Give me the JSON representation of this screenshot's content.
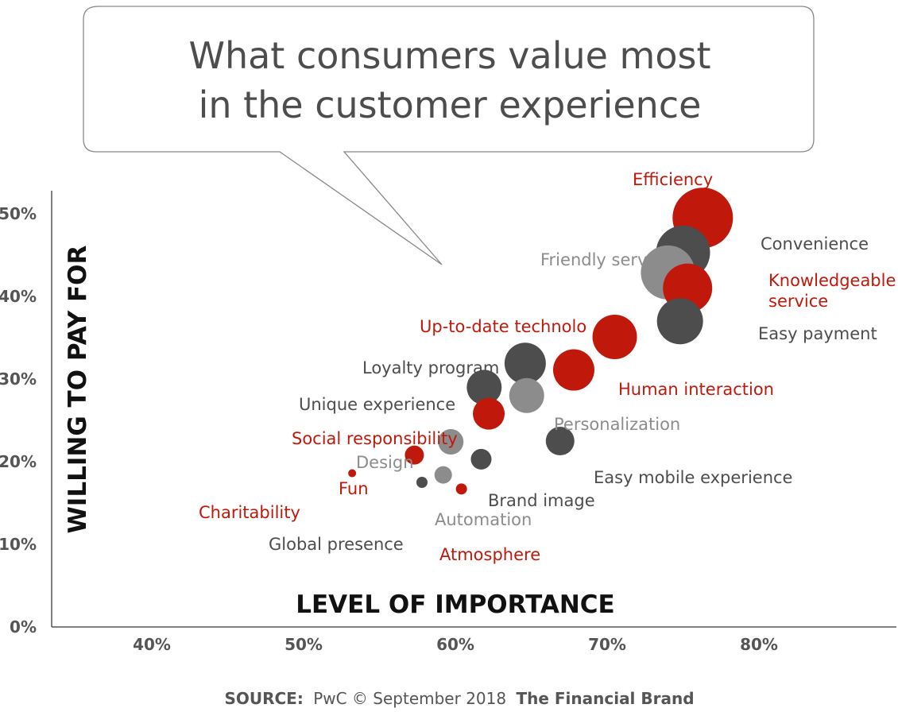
{
  "chart_data": {
    "type": "scatter",
    "title_lines": [
      "What consumers value most",
      "in the customer experience"
    ],
    "xlabel": "LEVEL OF IMPORTANCE",
    "ylabel": "WILLING TO PAY FOR",
    "x_ticks": [
      "40%",
      "50%",
      "60%",
      "70%",
      "80%"
    ],
    "y_ticks": [
      "0%",
      "10%",
      "20%",
      "30%",
      "40%",
      "50%"
    ],
    "xlim": [
      34,
      90
    ],
    "ylim": [
      0,
      52
    ],
    "grid": false,
    "colors": {
      "red": "#c0190c",
      "dark": "#4d4d4d",
      "grey": "#8c8c8c"
    },
    "points": [
      {
        "label": "Efficiency",
        "x": 76.3,
        "y": 49.5,
        "size": 38,
        "color": "red"
      },
      {
        "label": "Convenience",
        "x": 75.0,
        "y": 45.3,
        "size": 34,
        "color": "dark"
      },
      {
        "label": "Friendly service",
        "x": 74.0,
        "y": 42.9,
        "size": 34,
        "color": "grey"
      },
      {
        "label": "Knowledgeable service",
        "x": 75.3,
        "y": 41.0,
        "size": 31,
        "color": "red"
      },
      {
        "label": "Easy payment",
        "x": 74.8,
        "y": 37.0,
        "size": 29,
        "color": "dark"
      },
      {
        "label": "Up-to-date technology",
        "x": 70.5,
        "y": 35.1,
        "size": 28,
        "color": "red"
      },
      {
        "label": "Loyalty programs",
        "x": 64.6,
        "y": 31.9,
        "size": 26,
        "color": "dark"
      },
      {
        "label": "Human interaction",
        "x": 67.8,
        "y": 31.1,
        "size": 26,
        "color": "red"
      },
      {
        "label": "Unique experience",
        "x": 61.9,
        "y": 29.0,
        "size": 22,
        "color": "dark"
      },
      {
        "label": "Personalization",
        "x": 64.7,
        "y": 28.0,
        "size": 22,
        "color": "grey"
      },
      {
        "label": "Social responsibility",
        "x": 62.2,
        "y": 25.8,
        "size": 20,
        "color": "red"
      },
      {
        "label": "Easy mobile experience",
        "x": 66.9,
        "y": 22.5,
        "size": 18,
        "color": "dark"
      },
      {
        "label": "Design",
        "x": 59.7,
        "y": 22.4,
        "size": 16,
        "color": "grey"
      },
      {
        "label": "Fun",
        "x": 57.3,
        "y": 20.8,
        "size": 12,
        "color": "red"
      },
      {
        "label": "Brand image",
        "x": 61.7,
        "y": 20.3,
        "size": 13,
        "color": "dark"
      },
      {
        "label": "Automation",
        "x": 59.2,
        "y": 18.4,
        "size": 11,
        "color": "grey"
      },
      {
        "label": "Charitability",
        "x": 53.2,
        "y": 18.6,
        "size": 5,
        "color": "red"
      },
      {
        "label": "Global presence",
        "x": 57.8,
        "y": 17.5,
        "size": 7,
        "color": "dark"
      },
      {
        "label": "Atmosphere",
        "x": 60.4,
        "y": 16.7,
        "size": 7,
        "color": "red"
      }
    ]
  },
  "visible_labels": [
    {
      "text": "Efficiency",
      "color": "red"
    },
    {
      "text": "Convenience",
      "color": "dark"
    },
    {
      "text": "Friendly serv",
      "color": "grey"
    },
    {
      "text": "Knowledgeable",
      "color": "red"
    },
    {
      "text": "service",
      "color": "red"
    },
    {
      "text": "Easy payment",
      "color": "dark"
    },
    {
      "text": "Up-to-date technolo",
      "color": "red"
    },
    {
      "text": "Loyalty program",
      "color": "dark"
    },
    {
      "text": "Human interaction",
      "color": "red"
    },
    {
      "text": "Unique experience",
      "color": "dark"
    },
    {
      "text": "Personalization",
      "color": "grey"
    },
    {
      "text": "Social responsibility",
      "color": "red"
    },
    {
      "text": "Design",
      "color": "grey"
    },
    {
      "text": "Fun",
      "color": "red"
    },
    {
      "text": "Easy mobile experience",
      "color": "dark"
    },
    {
      "text": "Brand image",
      "color": "dark"
    },
    {
      "text": "Charitability",
      "color": "red"
    },
    {
      "text": "Automation",
      "color": "grey"
    },
    {
      "text": "Global presence",
      "color": "dark"
    },
    {
      "text": "Atmosphere",
      "color": "red"
    }
  ],
  "source": {
    "prefix": "SOURCE:",
    "text": "PwC © September 2018",
    "brand": "The Financial Brand"
  }
}
